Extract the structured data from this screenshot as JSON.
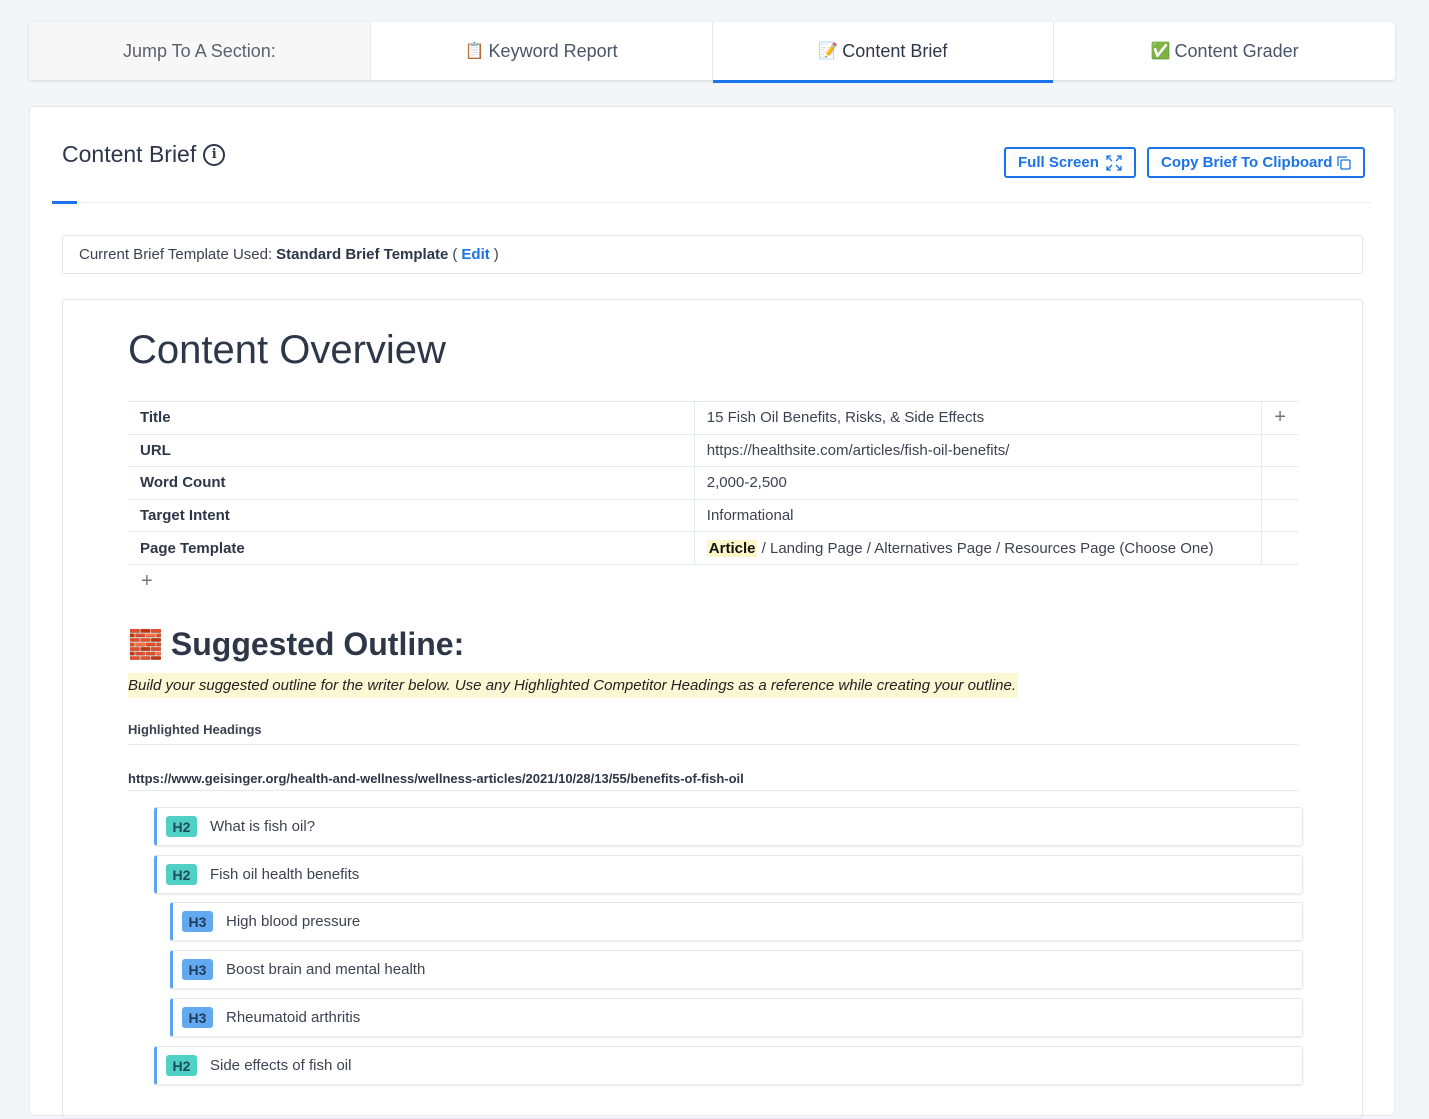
{
  "tabs": [
    {
      "label": "Jump To A Section:",
      "icon": ""
    },
    {
      "label": "Keyword Report",
      "icon": "📋"
    },
    {
      "label": "Content Brief",
      "icon": "📝",
      "active": true
    },
    {
      "label": "Content Grader",
      "icon": "✅"
    }
  ],
  "header": {
    "title": "Content Brief",
    "info_icon": "i",
    "full_screen": "Full Screen",
    "copy": "Copy Brief To Clipboard"
  },
  "template": {
    "label": "Current Brief Template Used:",
    "name": "Standard Brief Template",
    "open": "(",
    "edit": "Edit",
    "close": ")"
  },
  "overview": {
    "title": "Content Overview",
    "rows": [
      {
        "key": "Title",
        "value": "15 Fish Oil Benefits, Risks, & Side Effects"
      },
      {
        "key": "URL",
        "value": "https://healthsite.com/articles/fish-oil-benefits/"
      },
      {
        "key": "Word Count",
        "value": "2,000-2,500"
      },
      {
        "key": "Target Intent",
        "value": "Informational"
      },
      {
        "key": "Page Template",
        "highlight": "Article",
        "value": " / Landing Page / Alternatives Page / Resources Page (Choose One)"
      }
    ]
  },
  "outline": {
    "icon": "🧱",
    "title": "Suggested Outline:",
    "note": "Build your suggested outline for the writer below. Use any Highlighted Competitor Headings as a reference while creating your outline.",
    "highlighted_label": "Highlighted Headings",
    "source_url": "https://www.geisinger.org/health-and-wellness/wellness-articles/2021/10/28/13/55/benefits-of-fish-oil",
    "headings": [
      {
        "level": "H2",
        "text": "What is fish oil?"
      },
      {
        "level": "H2",
        "text": "Fish oil health benefits"
      },
      {
        "level": "H3",
        "text": "High blood pressure"
      },
      {
        "level": "H3",
        "text": "Boost brain and mental health"
      },
      {
        "level": "H3",
        "text": "Rheumatoid arthritis"
      },
      {
        "level": "H2",
        "text": "Side effects of fish oil"
      }
    ]
  },
  "colors": {
    "accent": "#1a73e8",
    "h2_badge": "#4fd1c5",
    "h3_badge": "#63a9f0",
    "highlight": "#fdf8d4"
  }
}
